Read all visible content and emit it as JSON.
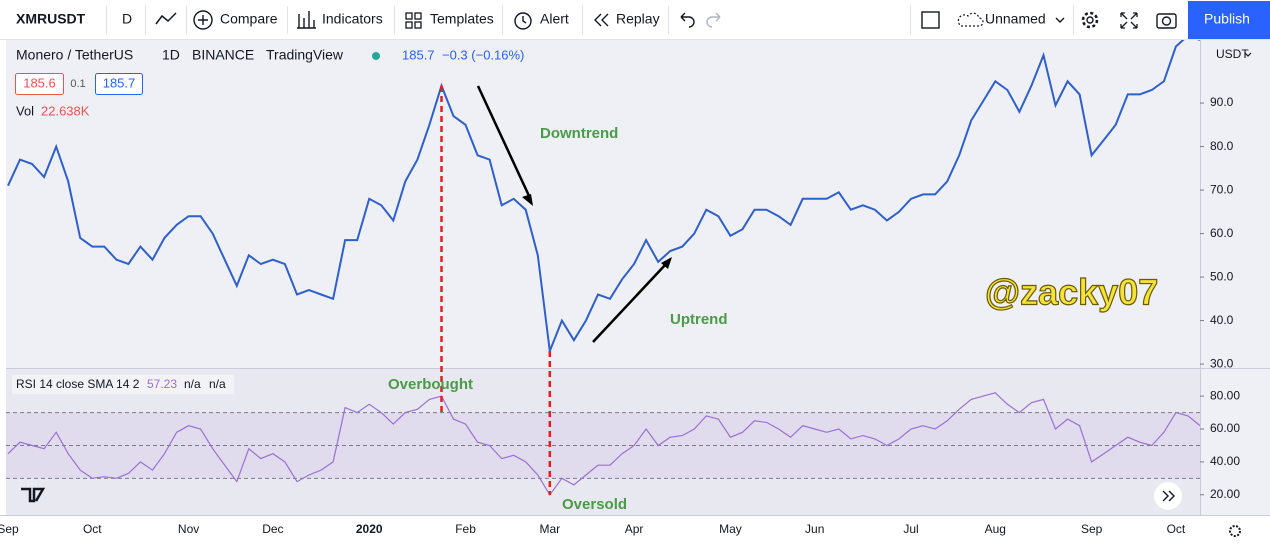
{
  "toolbar": {
    "symbol": "XMRUSDT",
    "interval": "D",
    "compare": "Compare",
    "indicators": "Indicators",
    "templates": "Templates",
    "alert": "Alert",
    "replay": "Replay",
    "layout_name": "Unnamed",
    "publish": "Publish"
  },
  "legend": {
    "title": "Monero / TetherUS",
    "interval": "1D",
    "exchange": "BINANCE",
    "source": "TradingView",
    "last": "185.7",
    "change": "−0.3 (−0.16%)",
    "bid": "185.6",
    "spread": "0.1",
    "ask": "185.7",
    "vol_label": "Vol",
    "vol_value": "22.638K"
  },
  "currency": "USDT",
  "annotations": {
    "downtrend": "Downtrend",
    "uptrend": "Uptrend",
    "overbought": "Overbought",
    "oversold": "Oversold",
    "watermark": "@zacky07"
  },
  "chart_data": [
    {
      "type": "line",
      "color": "#2f5fc9",
      "grid": false,
      "categories": [
        "Sep",
        null,
        null,
        null,
        null,
        null,
        null,
        "Oct",
        null,
        null,
        null,
        null,
        null,
        null,
        null,
        "Nov",
        null,
        null,
        null,
        null,
        null,
        null,
        "Dec",
        null,
        null,
        null,
        null,
        null,
        null,
        null,
        "2020",
        null,
        null,
        null,
        null,
        null,
        null,
        null,
        "Feb",
        null,
        null,
        null,
        null,
        null,
        null,
        "Mar",
        null,
        null,
        null,
        null,
        null,
        null,
        "Apr",
        null,
        null,
        null,
        null,
        null,
        null,
        null,
        "May",
        null,
        null,
        null,
        null,
        null,
        null,
        "Jun",
        null,
        null,
        null,
        null,
        null,
        null,
        null,
        "Jul",
        null,
        null,
        null,
        null,
        null,
        null,
        "Aug",
        null,
        null,
        null,
        null,
        null,
        null,
        null,
        "Sep",
        null,
        null,
        null,
        null,
        null,
        null,
        "Oct",
        null,
        null
      ],
      "values": [
        71,
        77,
        76,
        73,
        80,
        72,
        59,
        57,
        57,
        54,
        53,
        57,
        54,
        59,
        62,
        64,
        64,
        60,
        54,
        48,
        55,
        53,
        54,
        53,
        46,
        47,
        46,
        45,
        58.5,
        58.5,
        68,
        66.5,
        63,
        72,
        77,
        85,
        94,
        87,
        85,
        78,
        77,
        66.5,
        68,
        65.5,
        55,
        33,
        40,
        35.5,
        40,
        46,
        45,
        49.5,
        53,
        58.5,
        53.5,
        56,
        57,
        60,
        65.5,
        64,
        59.5,
        61,
        65.5,
        65.5,
        64,
        62,
        68,
        68,
        68,
        69.5,
        65.5,
        66.5,
        65.5,
        63,
        65,
        68,
        69,
        69,
        72,
        78,
        86,
        90.5,
        95,
        93,
        88,
        94,
        101,
        89.5,
        95,
        92,
        78,
        81.5,
        85,
        92,
        92,
        93,
        95,
        103,
        105.5,
        104.5
      ],
      "ylim": [
        29.1,
        104.5
      ],
      "yticks": [
        {
          "value": 30,
          "label": "30.0"
        },
        {
          "value": 40,
          "label": "40.0"
        },
        {
          "value": 50,
          "label": "50.0"
        },
        {
          "value": 60,
          "label": "60.0"
        },
        {
          "value": 70,
          "label": "70.0"
        },
        {
          "value": 80,
          "label": "80.0"
        },
        {
          "value": 90,
          "label": "90.0"
        }
      ]
    },
    {
      "type": "line",
      "title": "RSI 14 close SMA 14 2",
      "legend_values": [
        "57.23",
        "n/a",
        "n/a"
      ],
      "color": "#9b6fd3",
      "values": [
        45,
        52,
        50,
        48,
        58,
        45,
        35,
        30,
        31,
        30,
        33,
        40,
        35,
        45,
        58,
        62,
        60,
        48,
        38,
        28,
        48,
        42,
        45,
        40,
        28,
        32,
        35,
        40,
        73,
        70,
        75,
        70,
        63,
        70,
        72,
        78,
        80,
        66,
        63,
        52,
        50,
        42,
        44,
        40,
        32,
        20,
        30,
        26,
        32,
        38,
        38,
        45,
        50,
        60,
        50,
        55,
        56,
        60,
        68,
        66,
        55,
        58,
        65,
        64,
        60,
        55,
        62,
        60,
        58,
        60,
        54,
        56,
        54,
        50,
        54,
        60,
        62,
        60,
        65,
        72,
        78,
        80,
        82,
        75,
        70,
        76,
        78,
        60,
        66,
        62,
        40,
        45,
        50,
        55,
        52,
        50,
        58,
        70,
        68,
        62
      ],
      "levels": [
        30,
        50,
        70
      ],
      "ylim": [
        7.7,
        96.5
      ],
      "yticks": [
        {
          "value": 20,
          "label": "20.00"
        },
        {
          "value": 40,
          "label": "40.00"
        },
        {
          "value": 60,
          "label": "60.00"
        },
        {
          "value": 80,
          "label": "80.00"
        }
      ]
    }
  ]
}
